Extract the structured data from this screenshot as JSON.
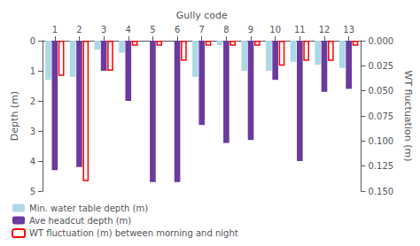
{
  "chart_data": {
    "type": "bar",
    "xlabel": "Gully code",
    "ylabel": "Depth (m)",
    "y2label": "WT fluctuation (m)",
    "categories": [
      1,
      2,
      3,
      4,
      5,
      6,
      7,
      8,
      9,
      10,
      11,
      12,
      13
    ],
    "series": [
      {
        "name": "Min. water table depth (m)",
        "color": "#add8e6",
        "values": [
          1.3,
          1.2,
          0.3,
          0.4,
          0.0,
          0.0,
          1.2,
          0.15,
          1.0,
          1.0,
          0.7,
          0.8,
          0.9
        ]
      },
      {
        "name": "Ave headcut depth (m)",
        "color": "#6b3a9e",
        "values": [
          4.3,
          4.2,
          1.0,
          2.0,
          4.7,
          4.7,
          2.8,
          3.4,
          3.3,
          1.3,
          4.0,
          1.7,
          1.6
        ]
      },
      {
        "name": "WT fluctuation (m) between morning and night",
        "color": "#ff0000",
        "axis": "y2",
        "values": [
          0.035,
          0.14,
          0.03,
          0.005,
          0.005,
          0.02,
          0.005,
          0.005,
          0.005,
          0.025,
          0.02,
          0.02,
          0.005
        ]
      }
    ],
    "ylim": [
      5,
      0
    ],
    "yticks": [
      0,
      1,
      2,
      3,
      4,
      5
    ],
    "y2lim": [
      0.15,
      0.0
    ],
    "y2ticks": [
      {
        "value": 0,
        "label": "0.000"
      },
      {
        "value": 0.025,
        "label": "0.025"
      },
      {
        "value": 0.05,
        "label": "0.050"
      },
      {
        "value": 0.075,
        "label": "0.075"
      },
      {
        "value": 0.1,
        "label": "0.100"
      },
      {
        "value": 0.125,
        "label": "0.125"
      },
      {
        "value": 0.15,
        "label": "0.150"
      }
    ],
    "grid": false,
    "legend": "lower left"
  }
}
